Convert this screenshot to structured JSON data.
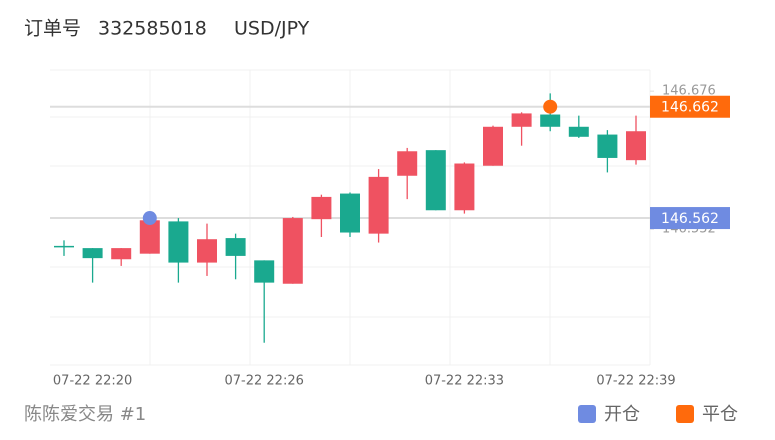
{
  "header": {
    "order_label": "订单号",
    "order_id": "332585018",
    "symbol": "USD/JPY"
  },
  "chart_data": {
    "type": "candlestick",
    "categories": [
      null,
      "07-22 22:20",
      null,
      null,
      null,
      null,
      null,
      "07-22 22:26",
      null,
      null,
      null,
      null,
      null,
      null,
      "07-22 22:33",
      null,
      null,
      null,
      null,
      null,
      "07-22 22:39"
    ],
    "open": [
      146.537,
      146.535,
      146.525,
      146.53,
      146.559,
      146.522,
      146.544,
      146.524,
      146.503,
      146.561,
      146.584,
      146.548,
      146.6,
      146.623,
      146.569,
      146.609,
      146.644,
      146.655,
      146.644,
      146.637,
      146.614
    ],
    "high": [
      146.542,
      146.535,
      146.535,
      146.566,
      146.562,
      146.557,
      146.548,
      146.524,
      146.563,
      146.583,
      146.585,
      146.606,
      146.625,
      146.623,
      146.612,
      146.645,
      146.657,
      146.674,
      146.654,
      146.641,
      146.654
    ],
    "low": [
      146.528,
      146.504,
      146.519,
      146.53,
      146.504,
      146.51,
      146.507,
      146.45,
      146.503,
      146.545,
      146.545,
      146.54,
      146.579,
      146.569,
      146.566,
      146.609,
      146.627,
      146.64,
      146.634,
      146.603,
      146.61
    ],
    "close": [
      146.536,
      146.526,
      146.535,
      146.56,
      146.522,
      146.543,
      146.528,
      146.504,
      146.562,
      146.581,
      146.549,
      146.599,
      146.622,
      146.569,
      146.611,
      146.644,
      146.656,
      146.644,
      146.635,
      146.616,
      146.64
    ],
    "up_color": "#ef5261",
    "down_color": "#1aa98f",
    "markers": [
      {
        "name": "开仓",
        "color": "#6f8be1",
        "values": [
          null,
          null,
          null,
          146.562,
          null,
          null,
          null,
          null,
          null,
          null,
          null,
          null,
          null,
          null,
          null,
          null,
          null,
          null,
          null,
          null,
          null
        ]
      },
      {
        "name": "平仓",
        "color": "#ff6a0c",
        "values": [
          null,
          null,
          null,
          null,
          null,
          null,
          null,
          null,
          null,
          null,
          null,
          null,
          null,
          null,
          null,
          null,
          null,
          146.662,
          null,
          null,
          null
        ]
      }
    ],
    "ylim": [
      146.43,
      146.695
    ],
    "yticks": [
      146.676,
      146.552
    ]
  },
  "footer": "陈陈爱交易 #1"
}
